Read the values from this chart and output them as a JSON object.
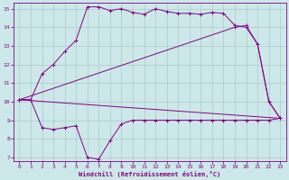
{
  "background_color": "#cde8e8",
  "line_color": "#880088",
  "grid_color": "#aacccc",
  "xlim": [
    -0.5,
    23.5
  ],
  "ylim": [
    6.8,
    15.3
  ],
  "yticks": [
    7,
    8,
    9,
    10,
    11,
    12,
    13,
    14,
    15
  ],
  "xticks": [
    0,
    1,
    2,
    3,
    4,
    5,
    6,
    7,
    8,
    9,
    10,
    11,
    12,
    13,
    14,
    15,
    16,
    17,
    18,
    19,
    20,
    21,
    22,
    23
  ],
  "xlabel": "Windchill (Refroidissement éolien,°C)",
  "series1_x": [
    0,
    1,
    2,
    3,
    4,
    5,
    6,
    7,
    8,
    9,
    10,
    11,
    12,
    13,
    14,
    15,
    16,
    17,
    18,
    19,
    20,
    21,
    22,
    23
  ],
  "series1_y": [
    10.1,
    10.1,
    8.6,
    8.5,
    8.6,
    8.7,
    7.0,
    6.9,
    7.9,
    8.8,
    9.0,
    9.0,
    9.0,
    9.0,
    9.0,
    9.0,
    9.0,
    9.0,
    9.0,
    9.0,
    9.0,
    9.0,
    9.0,
    9.1
  ],
  "series2_x": [
    0,
    1,
    2,
    3,
    4,
    5,
    6,
    7,
    8,
    9,
    10,
    11,
    12,
    13,
    14,
    15,
    16,
    17,
    18,
    19,
    20,
    21,
    22,
    23
  ],
  "series2_y": [
    10.1,
    10.1,
    11.5,
    12.0,
    12.7,
    13.3,
    15.1,
    15.1,
    14.9,
    15.0,
    14.8,
    14.7,
    15.0,
    14.85,
    14.75,
    14.75,
    14.7,
    14.8,
    14.75,
    14.1,
    14.0,
    13.1,
    10.0,
    9.1
  ],
  "series3_x": [
    0,
    19,
    20,
    21,
    22,
    23
  ],
  "series3_y": [
    10.1,
    14.0,
    14.1,
    13.1,
    10.0,
    9.1
  ],
  "series4_x": [
    0,
    23
  ],
  "series4_y": [
    10.1,
    9.1
  ]
}
